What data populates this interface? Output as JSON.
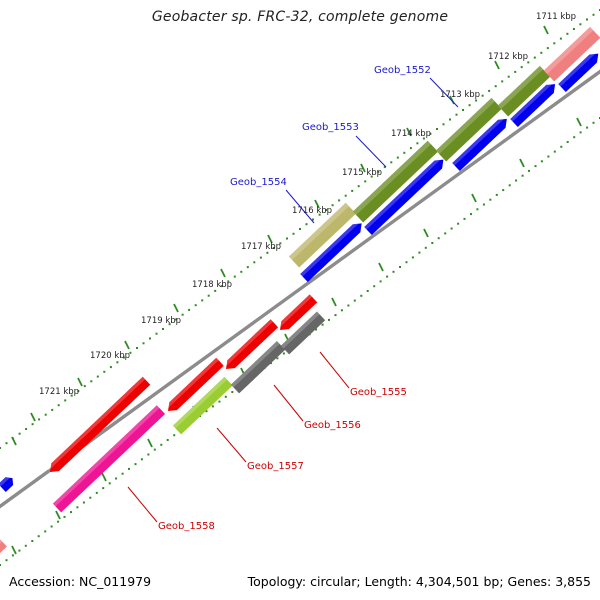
{
  "title": "Geobacter sp. FRC-32, complete genome",
  "footer": {
    "accession": "Accession: NC_011979",
    "summary": "Topology: circular; Length: 4,304,501 bp; Genes: 3,855"
  },
  "colors": {
    "dots": "#2e8b22",
    "backbone": "#8c8c8c",
    "cds_forward": "#0000ee",
    "cds_reverse": "#ee0000",
    "olive": "#6b8e23",
    "khaki": "#bdb76b",
    "salmon": "#f08080",
    "gray_gene": "#666666",
    "magenta": "#ee1493",
    "lime": "#9acd32",
    "forward_label": "#1a1acc",
    "reverse_label": "#cc0000"
  },
  "tick_labels": [
    "1711 kbp",
    "1712 kbp",
    "1713 kbp",
    "1714 kbp",
    "1715 kbp",
    "1716 kbp",
    "1717 kbp",
    "1718 kbp",
    "1719 kbp",
    "1720 kbp",
    "1721 kbp"
  ],
  "forward_genes": [
    "Geob_1552",
    "Geob_1553",
    "Geob_1554"
  ],
  "reverse_genes": [
    "Geob_1555",
    "Geob_1556",
    "Geob_1557",
    "Geob_1558"
  ]
}
